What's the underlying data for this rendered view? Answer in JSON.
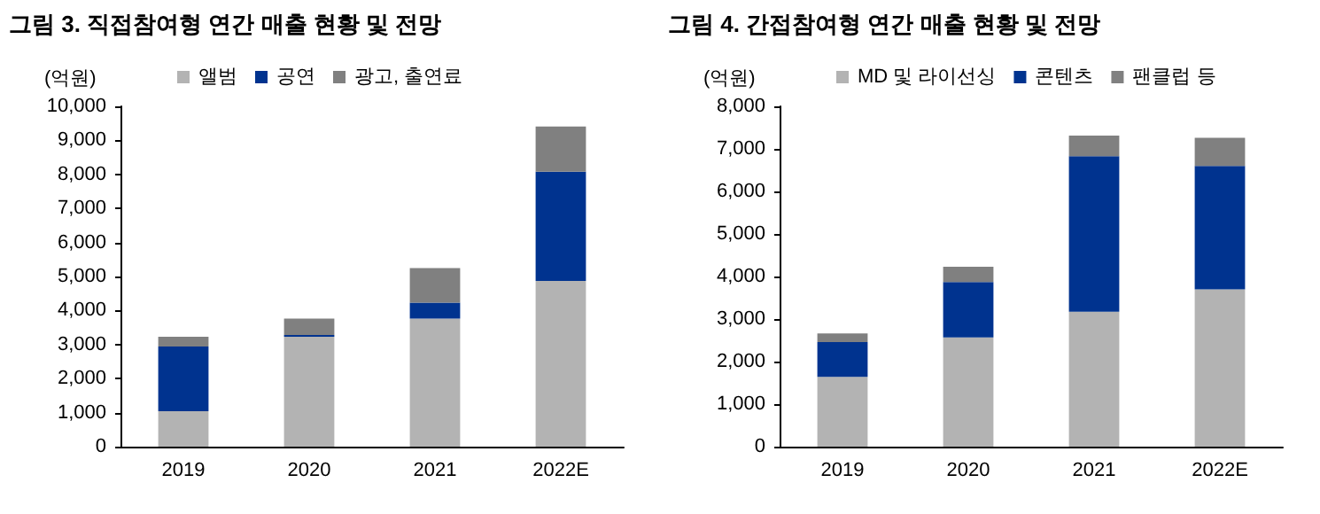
{
  "chart_data": [
    {
      "type": "bar",
      "title": "그림 3. 직접참여형 연간 매출 현황 및 전망",
      "ylabel": "(억원)",
      "categories": [
        "2019",
        "2020",
        "2021",
        "2022E"
      ],
      "stacked": true,
      "legend": "top",
      "grid": false,
      "ylim": [
        0,
        10000
      ],
      "yticks": [
        0,
        {
          "value": 1000,
          "label": "1,000"
        },
        {
          "value": 2000,
          "label": "2,000"
        },
        {
          "value": 3000,
          "label": "3,000"
        },
        {
          "value": 4000,
          "label": "4,000"
        },
        {
          "value": 5000,
          "label": "5,000"
        },
        {
          "value": 6000,
          "label": "6,000"
        },
        {
          "value": 7000,
          "label": "7,000"
        },
        {
          "value": 8000,
          "label": "8,000"
        },
        {
          "value": 9000,
          "label": "9,000"
        },
        {
          "value": 10000,
          "label": "10,000"
        }
      ],
      "series": [
        {
          "name": "앨범",
          "color": "#b3b3b3",
          "values": [
            1040,
            3230,
            3760,
            4870
          ]
        },
        {
          "name": "공연",
          "color": "#00338f",
          "values": [
            1900,
            50,
            470,
            3210
          ]
        },
        {
          "name": "광고, 출연료",
          "color": "#808080",
          "values": [
            290,
            480,
            1020,
            1330
          ]
        }
      ]
    },
    {
      "type": "bar",
      "title": "그림 4. 간접참여형 연간 매출 현황 및 전망",
      "ylabel": "(억원)",
      "categories": [
        "2019",
        "2020",
        "2021",
        "2022E"
      ],
      "stacked": true,
      "legend": "top",
      "grid": false,
      "ylim": [
        0,
        8000
      ],
      "yticks": [
        0,
        {
          "value": 1000,
          "label": "1,000"
        },
        {
          "value": 2000,
          "label": "2,000"
        },
        {
          "value": 3000,
          "label": "3,000"
        },
        {
          "value": 4000,
          "label": "4,000"
        },
        {
          "value": 5000,
          "label": "5,000"
        },
        {
          "value": 6000,
          "label": "6,000"
        },
        {
          "value": 7000,
          "label": "7,000"
        },
        {
          "value": 8000,
          "label": "8,000"
        }
      ],
      "series": [
        {
          "name": "MD 및 라이선싱",
          "color": "#b3b3b3",
          "values": [
            1640,
            2570,
            3170,
            3700
          ]
        },
        {
          "name": "콘텐츠",
          "color": "#00338f",
          "values": [
            820,
            1300,
            3660,
            2900
          ]
        },
        {
          "name": "팬클럽 등",
          "color": "#808080",
          "values": [
            200,
            360,
            480,
            660
          ]
        }
      ]
    }
  ]
}
